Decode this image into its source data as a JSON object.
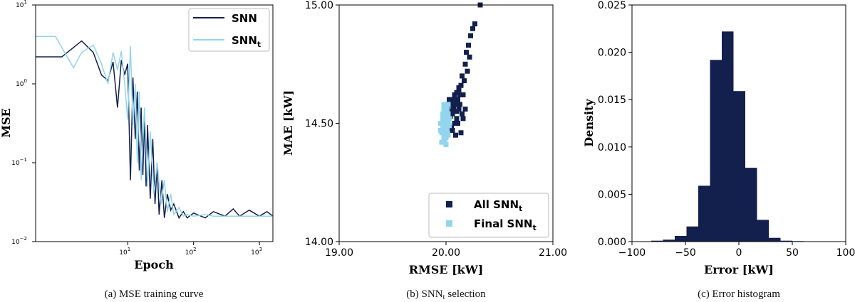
{
  "colors": {
    "dark": "#13204d",
    "light": "#93d5ee"
  },
  "chart_data": [
    {
      "type": "line",
      "xlabel": "Epoch",
      "ylabel": "MSE",
      "xscale": "log",
      "yscale": "log",
      "xlim": [
        0.4,
        1600
      ],
      "ylim": [
        0.01,
        10
      ],
      "xticks": [
        {
          "v": 10,
          "b": "10",
          "e": "1"
        },
        {
          "v": 100,
          "b": "10",
          "e": "2"
        },
        {
          "v": 1000,
          "b": "10",
          "e": "3"
        }
      ],
      "yticks": [
        {
          "v": 0.01,
          "b": "10",
          "e": "−2"
        },
        {
          "v": 0.1,
          "b": "10",
          "e": "−1"
        },
        {
          "v": 1,
          "b": "10",
          "e": "0"
        },
        {
          "v": 10,
          "b": "10",
          "e": "1"
        }
      ],
      "legend_position": "top-right",
      "series": [
        {
          "name": "SNN",
          "color": "#13204d",
          "x": [
            0.4,
            1,
            2,
            3,
            4,
            5,
            6,
            7,
            8,
            9,
            10,
            11,
            12,
            13,
            14,
            15,
            16,
            17,
            18,
            19,
            20,
            22,
            24,
            26,
            28,
            30,
            33,
            36,
            40,
            45,
            50,
            60,
            70,
            80,
            100,
            150,
            200,
            300,
            400,
            500,
            700,
            1000,
            1300,
            1600
          ],
          "y": [
            2.2,
            2.2,
            3.5,
            2.5,
            1.3,
            1.1,
            1.9,
            0.5,
            2.0,
            1.3,
            1.8,
            0.06,
            1.2,
            0.2,
            0.8,
            0.08,
            0.5,
            0.07,
            0.4,
            0.05,
            0.3,
            0.035,
            0.2,
            0.03,
            0.1,
            0.022,
            0.06,
            0.02,
            0.04,
            0.025,
            0.03,
            0.02,
            0.024,
            0.02,
            0.023,
            0.02,
            0.024,
            0.021,
            0.026,
            0.021,
            0.025,
            0.021,
            0.024,
            0.021
          ]
        },
        {
          "name": "SNNt",
          "color": "#93d5ee",
          "x": [
            0.4,
            0.8,
            1.5,
            2,
            3,
            4,
            5,
            6,
            7,
            8,
            9,
            10,
            11,
            12,
            13,
            14,
            15,
            16,
            18,
            20,
            22,
            25,
            28,
            32,
            36,
            40,
            45,
            50,
            60,
            70,
            80,
            100,
            150,
            200,
            300,
            500,
            800,
            1200,
            1600
          ],
          "y": [
            4.0,
            4.0,
            1.6,
            2.5,
            3.1,
            1.8,
            1.0,
            2.5,
            1.5,
            2.6,
            1.0,
            0.35,
            3.0,
            0.3,
            1.0,
            0.1,
            0.8,
            0.06,
            0.5,
            0.05,
            0.25,
            0.04,
            0.1,
            0.03,
            0.06,
            0.024,
            0.04,
            0.022,
            0.027,
            0.021,
            0.022,
            0.021,
            0.022,
            0.021,
            0.021,
            0.021,
            0.021,
            0.021,
            0.021
          ]
        }
      ]
    },
    {
      "type": "scatter",
      "xlabel": "RMSE [kW]",
      "ylabel": "MAE [kW]",
      "xlim": [
        19,
        21
      ],
      "ylim": [
        14,
        15
      ],
      "xticks": [
        "19.00",
        "20.00",
        "21.00"
      ],
      "yticks": [
        "14.00",
        "14.50",
        "15.00"
      ],
      "legend_position": "bottom-right",
      "series": [
        {
          "name": "All SNNt",
          "color": "#13204d",
          "x": [
            20.32,
            20.27,
            20.25,
            20.23,
            20.21,
            20.19,
            20.22,
            20.18,
            20.2,
            20.15,
            20.17,
            20.14,
            20.12,
            20.1,
            20.13,
            20.16,
            20.11,
            20.09,
            20.08,
            20.05,
            20.07,
            20.04,
            20.06,
            20.02,
            20.03,
            20.01,
            20.0,
            20.12,
            20.15,
            20.18,
            20.1,
            20.08,
            20.05,
            20.13,
            20.09,
            20.06,
            20.04,
            20.07,
            20.11,
            20.14,
            20.03,
            20.02,
            20.16,
            20.12,
            20.08,
            20.1
          ],
          "y": [
            15.0,
            14.92,
            14.9,
            14.87,
            14.83,
            14.8,
            14.78,
            14.75,
            14.72,
            14.7,
            14.68,
            14.66,
            14.65,
            14.63,
            14.62,
            14.62,
            14.6,
            14.58,
            14.6,
            14.58,
            14.56,
            14.6,
            14.54,
            14.57,
            14.55,
            14.52,
            14.5,
            14.56,
            14.54,
            14.56,
            14.52,
            14.5,
            14.48,
            14.58,
            14.45,
            14.47,
            14.53,
            14.55,
            14.5,
            14.46,
            14.6,
            14.48,
            14.52,
            14.64,
            14.62,
            14.55
          ]
        },
        {
          "name": "Final SNNt",
          "color": "#93d5ee",
          "x": [
            19.96,
            19.98,
            20.0,
            20.02,
            19.97,
            19.99,
            20.01,
            20.03,
            19.95,
            19.98,
            20.0,
            20.02,
            19.97,
            19.99,
            20.01,
            19.96,
            19.98,
            20.0,
            20.02,
            19.97,
            19.99,
            20.01,
            19.98,
            20.0,
            19.99,
            19.97,
            20.01,
            19.95,
            20.03,
            20.0,
            19.98,
            20.02
          ],
          "y": [
            14.42,
            14.44,
            14.46,
            14.45,
            14.48,
            14.47,
            14.5,
            14.49,
            14.5,
            14.52,
            14.53,
            14.51,
            14.54,
            14.55,
            14.56,
            14.46,
            14.5,
            14.48,
            14.54,
            14.52,
            14.45,
            14.57,
            14.58,
            14.44,
            14.43,
            14.5,
            14.47,
            14.47,
            14.52,
            14.41,
            14.56,
            14.58
          ]
        }
      ]
    },
    {
      "type": "bar",
      "subtype": "histogram",
      "xlabel": "Error [kW]",
      "ylabel": "Density",
      "xlim": [
        -100,
        100
      ],
      "ylim": [
        0,
        0.025
      ],
      "xticks": [
        "−100",
        "−50",
        "0",
        "50",
        "100"
      ],
      "yticks": [
        "0.000",
        "0.005",
        "0.010",
        "0.015",
        "0.020",
        "0.025"
      ],
      "color": "#13204d",
      "bin_edges": [
        -82,
        -71,
        -60,
        -49,
        -38,
        -27,
        -16,
        -5,
        6,
        17,
        28,
        39,
        50,
        61,
        72
      ],
      "values": [
        0.0001,
        0.0002,
        0.0006,
        0.0016,
        0.0059,
        0.0192,
        0.0222,
        0.0159,
        0.0078,
        0.0023,
        0.0004,
        0.0001,
        5e-05,
        2e-05
      ]
    }
  ],
  "captions": {
    "a": "(a) MSE training curve",
    "b_pre": "(b) SNN",
    "b_sub": "t",
    "b_post": " selection",
    "c": "(c) Error histogram"
  },
  "legend_a": {
    "snn": "SNN",
    "snnt_base": "SNN",
    "snnt_sub": "t"
  },
  "legend_b": {
    "all_pre": "All SNN",
    "all_sub": "t",
    "final_pre": "Final SNN",
    "final_sub": "t"
  }
}
